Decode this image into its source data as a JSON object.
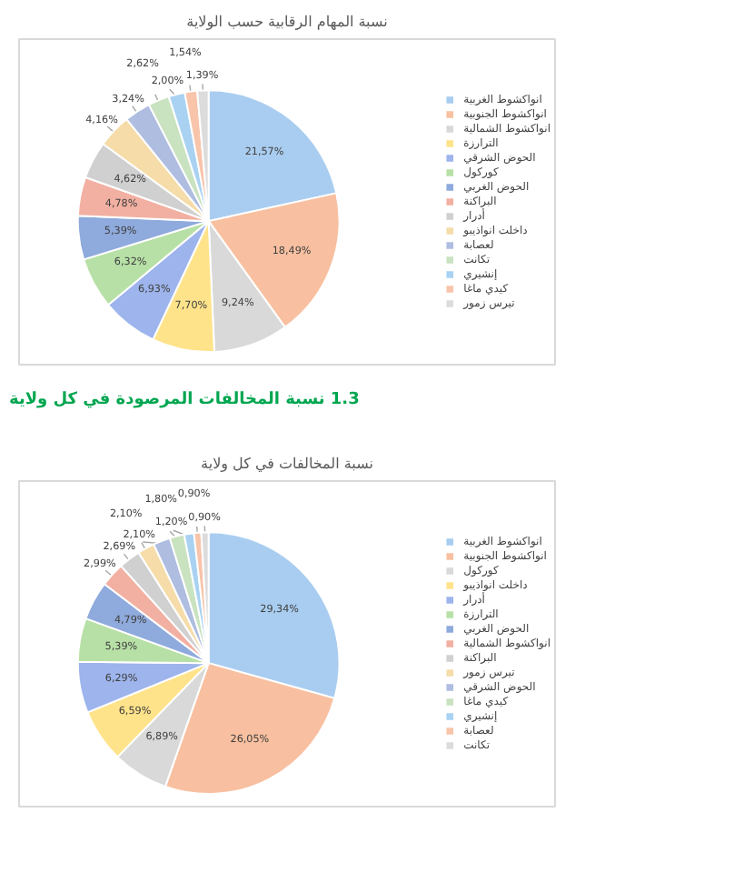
{
  "chart_data": [
    {
      "type": "pie",
      "title": "نسبة المهام الرقابية حسب الولاية",
      "categories": [
        "انواكشوط الغربية",
        "انواكشوط الجنوبية",
        "انواكشوط الشمالية",
        "الترارزة",
        "الحوض الشرقي",
        "كوركول",
        "الحوض الغربي",
        "البراكنة",
        "أدرار",
        "داخلت انواذيبو",
        "لعصابة",
        "تكانت",
        "إنشيري",
        "كيدي ماغا",
        "تيرس زمور"
      ],
      "values": [
        21.57,
        18.49,
        9.24,
        7.7,
        6.93,
        6.32,
        5.39,
        4.78,
        4.62,
        4.16,
        3.24,
        2.62,
        2.0,
        1.54,
        1.39
      ],
      "value_labels": [
        "21,57%",
        "18,49%",
        "9,24%",
        "7,70%",
        "6,93%",
        "6,32%",
        "5,39%",
        "4,78%",
        "4,62%",
        "4,16%",
        "3,24%",
        "2,62%",
        "2,00%",
        "1,54%",
        "1,39%"
      ],
      "colors": [
        "#a9cdf0",
        "#f8c0a0",
        "#d9d9d9",
        "#ffe38a",
        "#9db4ec",
        "#b7e0a6",
        "#8faadc",
        "#f2b0a2",
        "#d0d0d0",
        "#f5dca8",
        "#aebde0",
        "#c9e2c0",
        "#a9d2f2",
        "#f8c4aa",
        "#dcdcdc"
      ],
      "legend": "right"
    },
    {
      "type": "pie",
      "title": "نسبة المخالفات في كل ولاية",
      "annotations": [
        "1.3  نسبة المخالفات المرصودة في كل ولاية"
      ],
      "categories": [
        "انواكشوط الغربية",
        "انواكشوط الجنوبية",
        "كوركول",
        "داخلت انواذيبو",
        "أدرار",
        "الترارزة",
        "الحوض الغربي",
        "انواكشوط الشمالية",
        "البراكنة",
        "تيرس زمور",
        "الحوض الشرقي",
        "كيدي ماغا",
        "إنشيري",
        "لعصابة",
        "تكانت"
      ],
      "values": [
        29.34,
        26.05,
        6.89,
        6.59,
        6.29,
        5.39,
        4.79,
        2.99,
        2.69,
        2.1,
        2.1,
        1.8,
        1.2,
        0.9,
        0.9
      ],
      "value_labels": [
        "29,34%",
        "26,05%",
        "6,89%",
        "6,59%",
        "6,29%",
        "5,39%",
        "4,79%",
        "2,99%",
        "2,69%",
        "2,10%",
        "2,10%",
        "1,80%",
        "1,20%",
        "0,90%",
        "0,90%"
      ],
      "colors": [
        "#a9cdf0",
        "#f8c0a0",
        "#d9d9d9",
        "#ffe38a",
        "#9db4ec",
        "#b7e0a6",
        "#8faadc",
        "#f2b0a2",
        "#d0d0d0",
        "#f5dca8",
        "#aebde0",
        "#c9e2c0",
        "#a9d2f2",
        "#f8c4aa",
        "#dcdcdc"
      ],
      "legend": "right"
    }
  ]
}
